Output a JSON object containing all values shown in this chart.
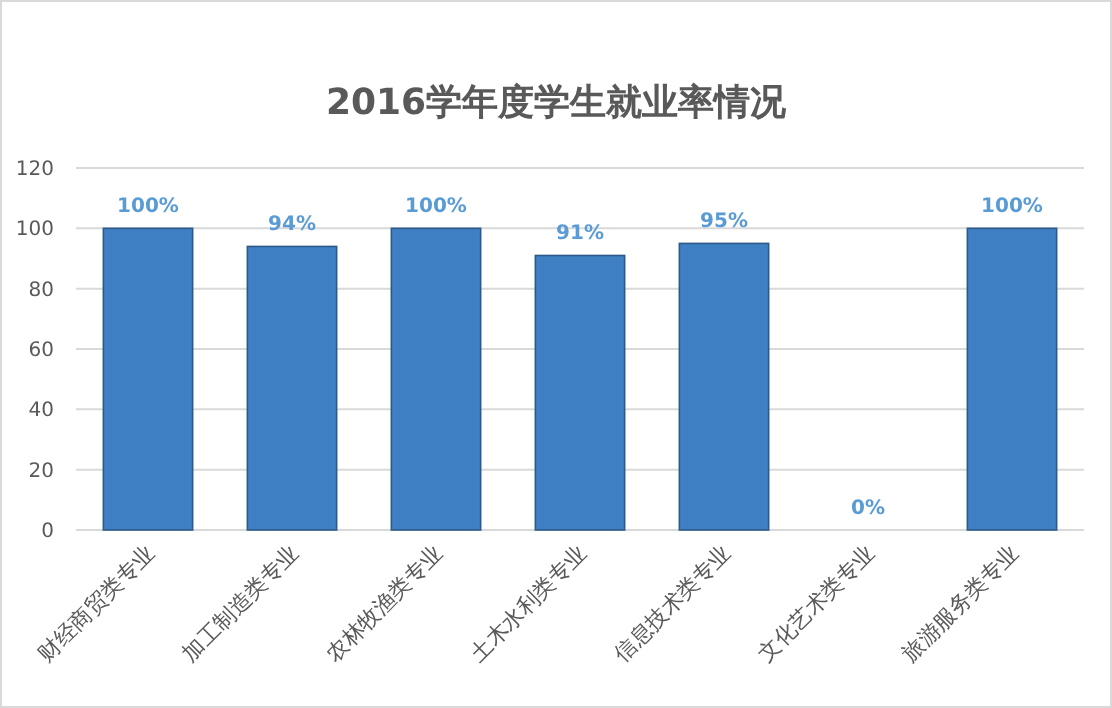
{
  "chart_data": {
    "type": "bar",
    "title": "2016学年度学生就业率情况",
    "categories": [
      "财经商贸类专业",
      "加工制造类专业",
      "农林牧渔类专业",
      "土木水利类专业",
      "信息技术类专业",
      "文化艺术类专业",
      "旅游服务类专业"
    ],
    "values": [
      100,
      94,
      100,
      91,
      95,
      0,
      100
    ],
    "value_labels": [
      "100%",
      "94%",
      "100%",
      "91%",
      "95%",
      "0%",
      "100%"
    ],
    "color": "#3f7fc4",
    "ylim": [
      0,
      120
    ],
    "yticks": [
      0,
      20,
      40,
      60,
      80,
      100,
      120
    ],
    "grid": "y"
  }
}
